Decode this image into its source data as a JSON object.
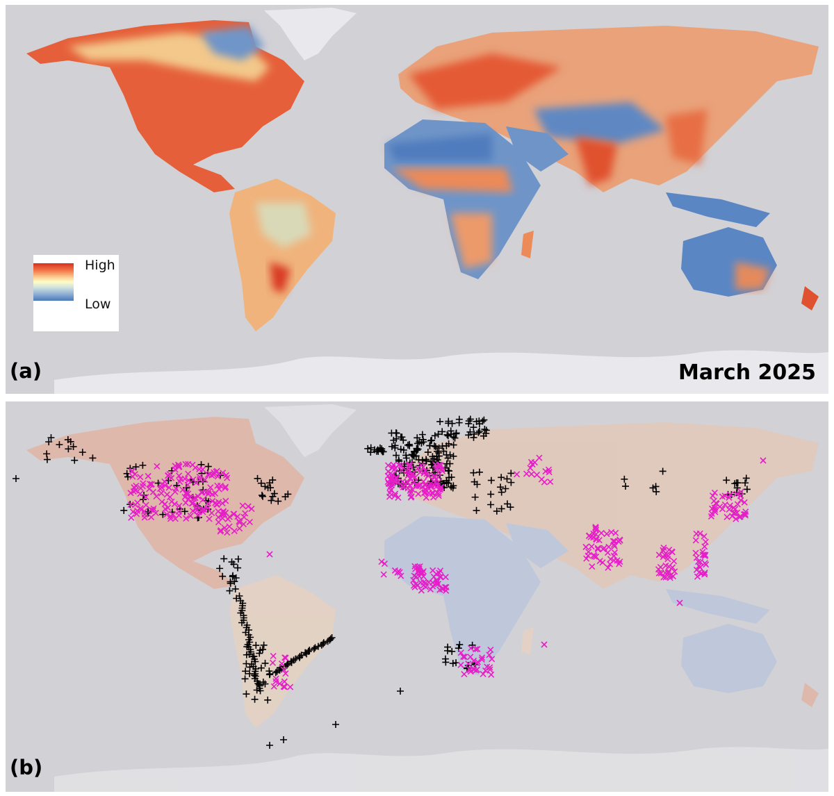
{
  "panel_a": {
    "label": "(a)",
    "date": "March 2025",
    "legend": {
      "high": "High",
      "low": "Low"
    },
    "colors": {
      "high": "#d7301f",
      "mid": "#fefcc8",
      "low": "#4a78b9",
      "ocean": "#d2d1d6",
      "ice": "#e9e8ec"
    }
  },
  "panel_b": {
    "label": "(b)",
    "markers": {
      "plus": {
        "symbol": "+",
        "color": "#000000"
      },
      "cross": {
        "symbol": "×",
        "color": "#e61ec8"
      }
    }
  }
}
